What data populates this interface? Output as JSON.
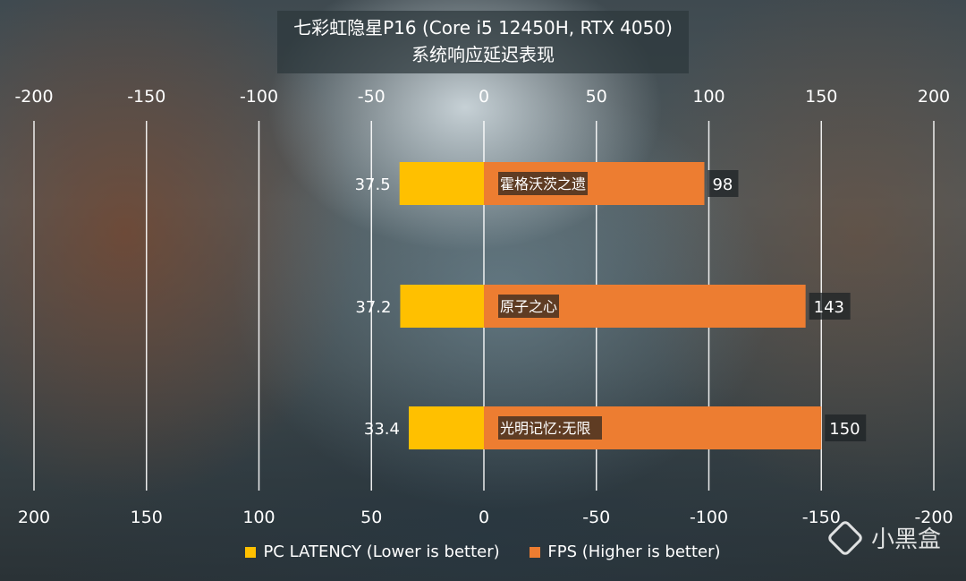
{
  "title": {
    "line1": "七彩虹隐星P16 (Core i5 12450H, RTX 4050)",
    "line2": "系统响应延迟表现"
  },
  "chart_data": {
    "type": "bar",
    "orientation": "horizontal",
    "categories": [
      "霍格沃茨之遗",
      "原子之心",
      "光明记忆:无限"
    ],
    "series": [
      {
        "name": "PC LATENCY (Lower is better)",
        "values": [
          37.5,
          37.2,
          33.4
        ],
        "direction": "left",
        "color": "#FFC000"
      },
      {
        "name": "FPS (Higher is better)",
        "values": [
          98,
          143,
          150
        ],
        "direction": "right",
        "color": "#ED7D31"
      }
    ],
    "xlim": [
      -200,
      200
    ],
    "top_axis_ticks": [
      "-200",
      "-150",
      "-100",
      "-50",
      "0",
      "50",
      "100",
      "150",
      "200"
    ],
    "bottom_axis_ticks": [
      "200",
      "150",
      "100",
      "50",
      "0",
      "-50",
      "-100",
      "-150",
      "-200"
    ],
    "grid": "vertical",
    "legend_position": "bottom"
  },
  "watermark": {
    "text": "小黑盒"
  }
}
